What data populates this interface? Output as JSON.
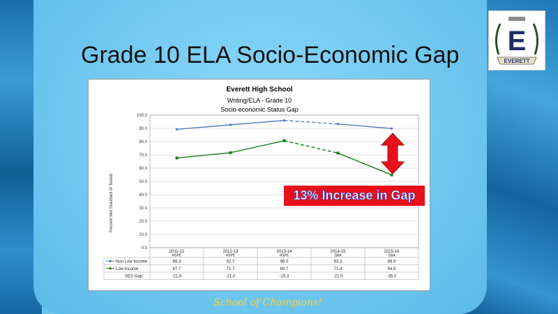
{
  "slide": {
    "title": "Grade 10 ELA Socio-Economic Gap",
    "footer": "School of Champions!",
    "logo_text": "EVERETT",
    "logo_letter": "E"
  },
  "callout": {
    "text": "13% Increase in Gap",
    "bg": "#e8101a",
    "fg": "#1f3fd0"
  },
  "chart_data": {
    "type": "line",
    "title": "Everett High School",
    "subtitle1": "Writing/ELA - Grade 10",
    "subtitle2": "Socio-economic Status Gap",
    "ylabel": "Percent Met Standard of Tested",
    "ylim": [
      0,
      100
    ],
    "yticks": [
      "0.0",
      "10.0",
      "20.0",
      "30.0",
      "40.0",
      "50.0",
      "60.0",
      "70.0",
      "80.0",
      "90.0",
      "100.0"
    ],
    "categories": [
      "2011-12",
      "2012-13",
      "2013-14",
      "2014-15",
      "2015-16"
    ],
    "tests": [
      "HSPE",
      "HSPE",
      "HSPE",
      "SBA",
      "SBA"
    ],
    "series": [
      {
        "name": "Non Low Income",
        "color": "#4a7ebb",
        "values": [
          89.3,
          92.7,
          96.0,
          93.3,
          89.9
        ],
        "labels": [
          "89.3",
          "92.7",
          "96.0",
          "93.3",
          "89.9"
        ]
      },
      {
        "name": "Low Income",
        "color": "#1a7a1a",
        "values": [
          67.7,
          71.7,
          80.7,
          71.4,
          54.9
        ],
        "labels": [
          "67.7",
          "71.7",
          "80.7",
          "71.4",
          "54.9"
        ]
      }
    ],
    "gap_row": {
      "name": "SES Gap",
      "labels": [
        "-21.6",
        "-21.0",
        "-15.3",
        "-22.0",
        "-35.0"
      ]
    },
    "grid": true
  }
}
